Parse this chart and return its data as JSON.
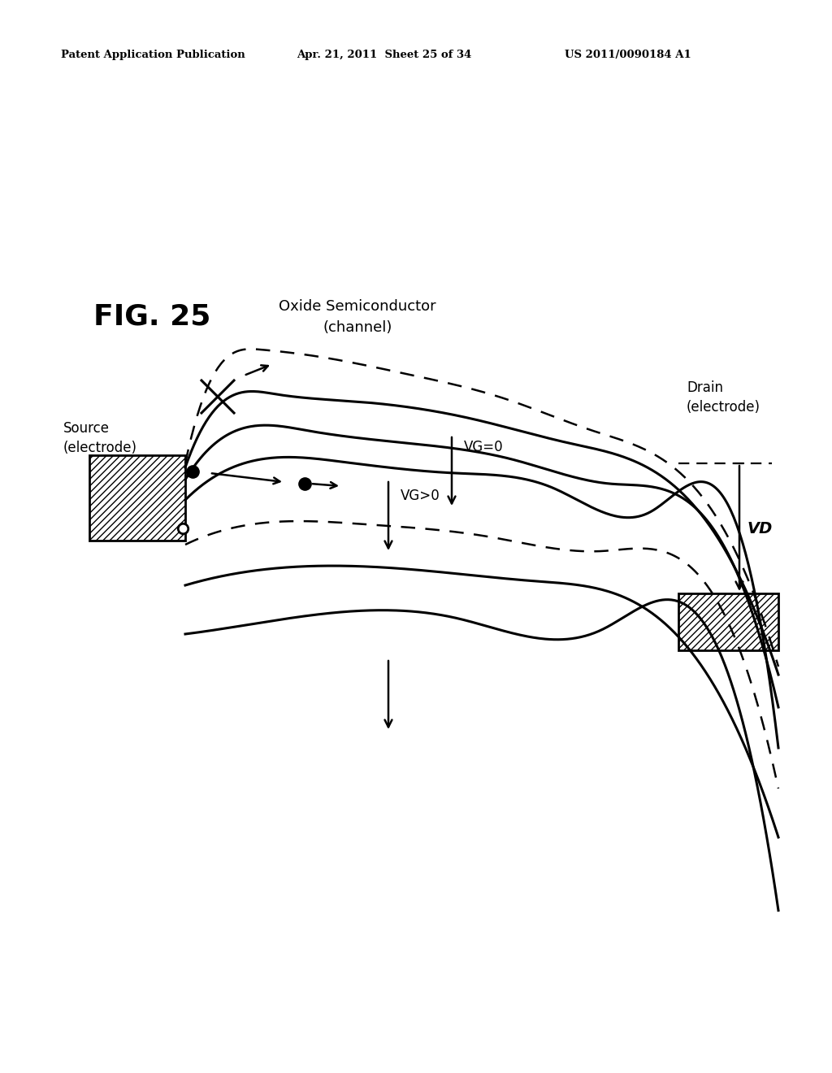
{
  "header_left": "Patent Application Publication",
  "header_mid": "Apr. 21, 2011  Sheet 25 of 34",
  "header_right": "US 2011/0090184 A1",
  "fig_label": "FIG. 25",
  "label_channel": "Oxide Semiconductor\n(channel)",
  "label_source": "Source\n(electrode)",
  "label_drain": "Drain\n(electrode)",
  "label_vg0": "VG=0",
  "label_vg_gt0": "VG>0",
  "label_vd": "VD",
  "bg_color": "#ffffff"
}
